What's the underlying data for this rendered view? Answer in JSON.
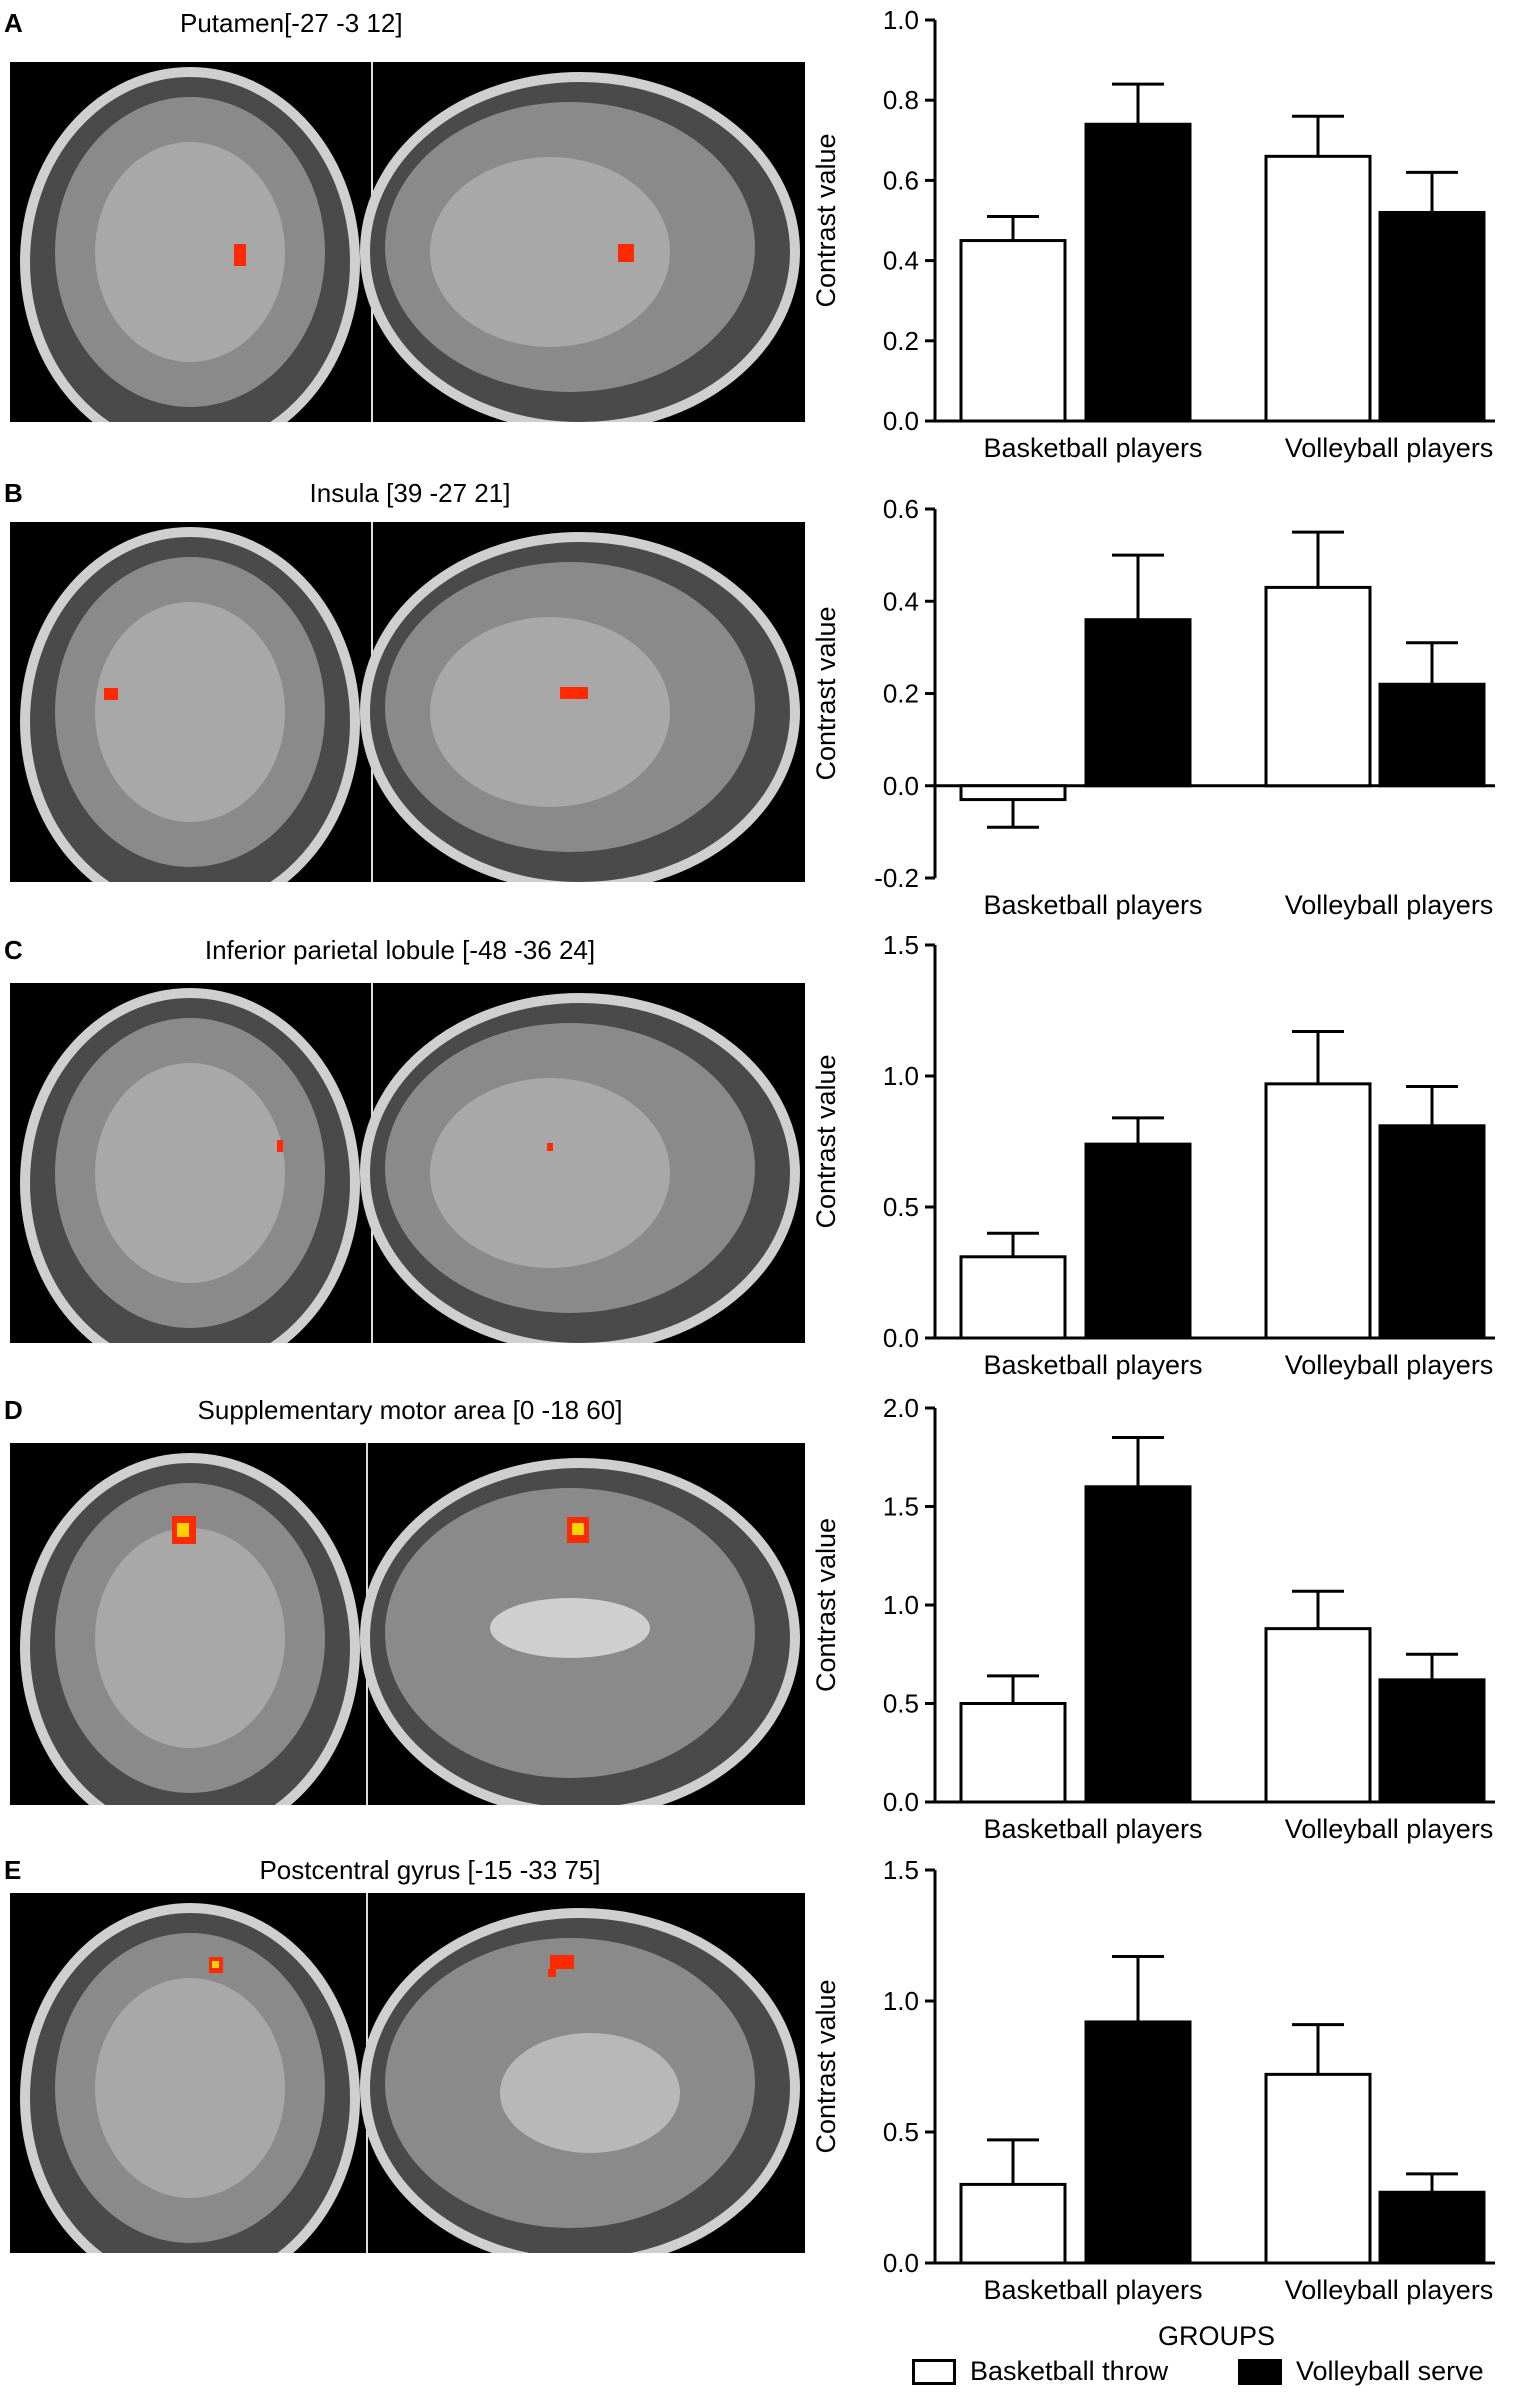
{
  "panels": [
    {
      "letter": "A",
      "region_title": "Putamen[-27 -3 12]"
    },
    {
      "letter": "B",
      "region_title": "Insula [39 -27 21]"
    },
    {
      "letter": "C",
      "region_title": "Inferior parietal lobule [-48 -36 24]"
    },
    {
      "letter": "D",
      "region_title": "Supplementary motor area [0 -18 60]"
    },
    {
      "letter": "E",
      "region_title": "Postcentral gyrus [-15 -33 75]"
    }
  ],
  "x_axis_title": "GROUPS",
  "legend": [
    {
      "label": "Basketball throw",
      "color": "#ffffff"
    },
    {
      "label": "Volleyball serve",
      "color": "#000000"
    }
  ],
  "chart_data": [
    {
      "type": "bar",
      "categories": [
        "Basketball players",
        "Volleyball players"
      ],
      "series": [
        {
          "name": "Basketball throw",
          "values": [
            0.45,
            0.66
          ],
          "errors": [
            0.06,
            0.1
          ]
        },
        {
          "name": "Volleyball serve",
          "values": [
            0.74,
            0.52
          ],
          "errors": [
            0.1,
            0.1
          ]
        }
      ],
      "ylabel": "Contrast value",
      "ylim": [
        0,
        1.0
      ],
      "yticks": [
        "0.0",
        "0.2",
        "0.4",
        "0.6",
        "0.8",
        "1.0"
      ]
    },
    {
      "type": "bar",
      "categories": [
        "Basketball players",
        "Volleyball players"
      ],
      "series": [
        {
          "name": "Basketball throw",
          "values": [
            -0.03,
            0.43
          ],
          "errors": [
            0.06,
            0.12
          ]
        },
        {
          "name": "Volleyball serve",
          "values": [
            0.36,
            0.22
          ],
          "errors": [
            0.14,
            0.09
          ]
        }
      ],
      "ylabel": "Contrast value",
      "ylim": [
        -0.2,
        0.6
      ],
      "yticks": [
        "-0.2",
        "0.0",
        "0.2",
        "0.4",
        "0.6"
      ]
    },
    {
      "type": "bar",
      "categories": [
        "Basketball players",
        "Volleyball players"
      ],
      "series": [
        {
          "name": "Basketball throw",
          "values": [
            0.31,
            0.97
          ],
          "errors": [
            0.09,
            0.2
          ]
        },
        {
          "name": "Volleyball serve",
          "values": [
            0.74,
            0.81
          ],
          "errors": [
            0.1,
            0.15
          ]
        }
      ],
      "ylabel": "Contrast value",
      "ylim": [
        0,
        1.5
      ],
      "yticks": [
        "0.0",
        "0.5",
        "1.0",
        "1.5"
      ]
    },
    {
      "type": "bar",
      "categories": [
        "Basketball players",
        "Volleyball players"
      ],
      "series": [
        {
          "name": "Basketball throw",
          "values": [
            0.5,
            0.88
          ],
          "errors": [
            0.14,
            0.19
          ]
        },
        {
          "name": "Volleyball serve",
          "values": [
            1.6,
            0.62
          ],
          "errors": [
            0.25,
            0.13
          ]
        }
      ],
      "ylabel": "Contrast value",
      "ylim": [
        0,
        2.0
      ],
      "yticks": [
        "0.0",
        "0.5",
        "1.0",
        "1.5",
        "2.0"
      ]
    },
    {
      "type": "bar",
      "categories": [
        "Basketball players",
        "Volleyball players"
      ],
      "series": [
        {
          "name": "Basketball throw",
          "values": [
            0.3,
            0.72
          ],
          "errors": [
            0.17,
            0.19
          ]
        },
        {
          "name": "Volleyball serve",
          "values": [
            0.92,
            0.27
          ],
          "errors": [
            0.25,
            0.07
          ]
        }
      ],
      "ylabel": "Contrast value",
      "ylim": [
        0,
        1.5
      ],
      "yticks": [
        "0.0",
        "0.5",
        "1.0",
        "1.5"
      ]
    }
  ]
}
